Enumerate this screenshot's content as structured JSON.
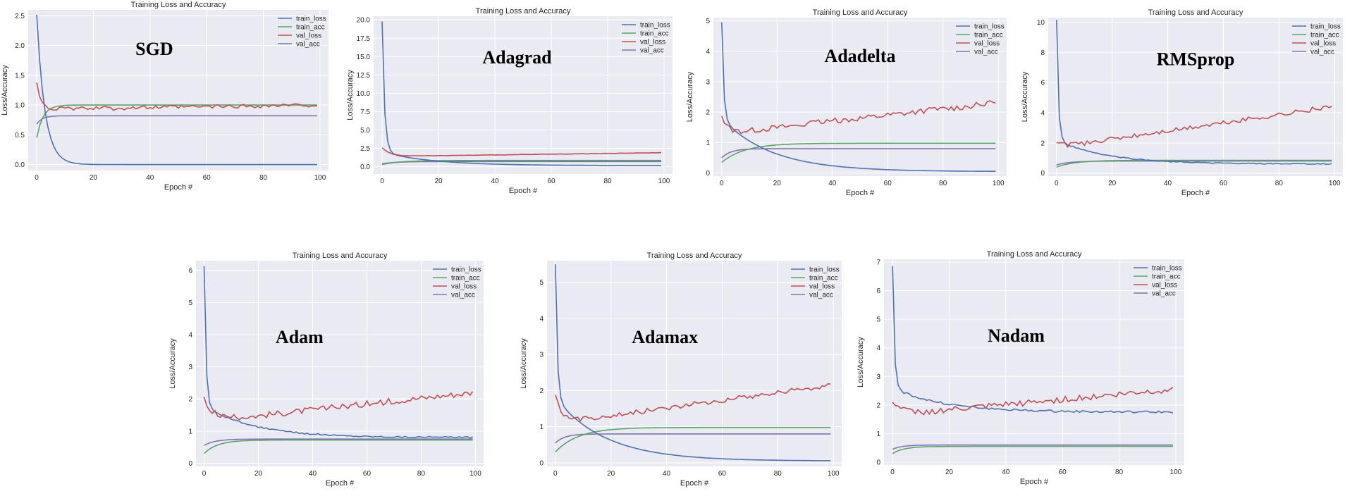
{
  "series_names": [
    "train_loss",
    "train_acc",
    "val_loss",
    "val_acc"
  ],
  "colors": {
    "train_loss": "#4c72b0",
    "train_acc": "#55a868",
    "val_loss": "#c44e52",
    "val_acc": "#8172b2",
    "plot_bg": "#eaeaf2"
  },
  "chart_data": [
    {
      "type": "line",
      "optimizer": "SGD",
      "title": "Training Loss and Accuracy",
      "xlabel": "Epoch #",
      "ylabel": "Loss/Accuracy",
      "xlim": [
        -3,
        103
      ],
      "ylim": [
        -0.1,
        2.6
      ],
      "xticks": [
        0,
        20,
        40,
        60,
        80,
        100
      ],
      "yticks": [
        0.0,
        0.5,
        1.0,
        1.5,
        2.0,
        2.5
      ],
      "legend": "top-right",
      "grid": true,
      "series": [
        {
          "name": "train_loss",
          "shape": "decay",
          "start": 2.52,
          "end": 0.0,
          "rate": 0.35,
          "noise": 0
        },
        {
          "name": "train_acc",
          "shape": "rise",
          "start": 0.45,
          "end": 1.0,
          "rate": 0.45,
          "noise": 0
        },
        {
          "name": "val_loss",
          "shape": "dip-rise",
          "start": 1.35,
          "end": 1.0,
          "rate": 0.6,
          "min": 0.93,
          "noise": 0.03
        },
        {
          "name": "val_acc",
          "shape": "rise",
          "start": 0.68,
          "end": 0.82,
          "rate": 0.5,
          "noise": 0
        }
      ]
    },
    {
      "type": "line",
      "optimizer": "Adagrad",
      "title": "Training Loss and Accuracy",
      "xlabel": "Epoch #",
      "ylabel": "Loss/Accuracy",
      "xlim": [
        -3,
        103
      ],
      "ylim": [
        -1.0,
        20.5
      ],
      "xticks": [
        0,
        20,
        40,
        60,
        80,
        100
      ],
      "yticks": [
        0.0,
        2.5,
        5.0,
        7.5,
        10.0,
        12.5,
        15.0,
        17.5,
        20.0
      ],
      "legend": "top-right",
      "grid": true,
      "series": [
        {
          "name": "train_loss",
          "shape": "decay-slow",
          "start": 19.8,
          "end": 0.15,
          "rate": 1.2,
          "mid": 2.0,
          "noise": 0
        },
        {
          "name": "train_acc",
          "shape": "rise",
          "start": 0.3,
          "end": 0.85,
          "rate": 0.15,
          "noise": 0
        },
        {
          "name": "val_loss",
          "shape": "dip-rise",
          "start": 2.6,
          "end": 1.9,
          "rate": 0.35,
          "min": 1.4,
          "noise": 0.02
        },
        {
          "name": "val_acc",
          "shape": "rise",
          "start": 0.4,
          "end": 0.7,
          "rate": 0.2,
          "noise": 0
        }
      ]
    },
    {
      "type": "line",
      "optimizer": "Adadelta",
      "title": "Training Loss and Accuracy",
      "xlabel": "Epoch #",
      "ylabel": "Loss/Accuracy",
      "xlim": [
        -3,
        103
      ],
      "ylim": [
        -0.1,
        5.1
      ],
      "xticks": [
        0,
        20,
        40,
        60,
        80,
        100
      ],
      "yticks": [
        0,
        1,
        2,
        3,
        4,
        5
      ],
      "legend": "top-right",
      "grid": true,
      "series": [
        {
          "name": "train_loss",
          "shape": "decay-slow",
          "start": 4.95,
          "end": 0.05,
          "rate": 1.5,
          "mid": 1.8,
          "noise": 0
        },
        {
          "name": "train_acc",
          "shape": "rise",
          "start": 0.35,
          "end": 0.98,
          "rate": 0.12,
          "noise": 0
        },
        {
          "name": "val_loss",
          "shape": "dip-rise",
          "start": 1.9,
          "end": 2.3,
          "rate": 0.5,
          "min": 1.3,
          "noise": 0.08
        },
        {
          "name": "val_acc",
          "shape": "rise",
          "start": 0.5,
          "end": 0.8,
          "rate": 0.3,
          "noise": 0
        }
      ]
    },
    {
      "type": "line",
      "optimizer": "RMSprop",
      "title": "Training Loss and Accuracy",
      "xlabel": "Epoch #",
      "ylabel": "Loss/Accuracy",
      "xlim": [
        -3,
        103
      ],
      "ylim": [
        -0.2,
        10.3
      ],
      "xticks": [
        0,
        20,
        40,
        60,
        80,
        100
      ],
      "yticks": [
        0,
        2,
        4,
        6,
        8,
        10
      ],
      "legend": "top-right",
      "grid": true,
      "series": [
        {
          "name": "train_loss",
          "shape": "decay-slow",
          "start": 10.1,
          "end": 0.6,
          "rate": 1.6,
          "mid": 2.2,
          "noise": 0.03
        },
        {
          "name": "train_acc",
          "shape": "rise",
          "start": 0.4,
          "end": 0.85,
          "rate": 0.15,
          "noise": 0
        },
        {
          "name": "val_loss",
          "shape": "dip-rise",
          "start": 2.0,
          "end": 4.4,
          "rate": 0.4,
          "min": 1.7,
          "noise": 0.12
        },
        {
          "name": "val_acc",
          "shape": "rise",
          "start": 0.55,
          "end": 0.8,
          "rate": 0.2,
          "noise": 0
        }
      ]
    },
    {
      "type": "line",
      "optimizer": "Adam",
      "title": "Training Loss and Accuracy",
      "xlabel": "Epoch #",
      "ylabel": "Loss/Accuracy",
      "xlim": [
        -3,
        103
      ],
      "ylim": [
        -0.1,
        6.3
      ],
      "xticks": [
        0,
        20,
        40,
        60,
        80,
        100
      ],
      "yticks": [
        0,
        1,
        2,
        3,
        4,
        5,
        6
      ],
      "legend": "top-right",
      "grid": true,
      "series": [
        {
          "name": "train_loss",
          "shape": "decay-slow",
          "start": 6.15,
          "end": 0.8,
          "rate": 1.5,
          "mid": 1.8,
          "noise": 0.02
        },
        {
          "name": "train_acc",
          "shape": "rise",
          "start": 0.3,
          "end": 0.72,
          "rate": 0.2,
          "noise": 0
        },
        {
          "name": "val_loss",
          "shape": "dip-rise",
          "start": 2.0,
          "end": 2.2,
          "rate": 0.3,
          "min": 1.3,
          "noise": 0.08
        },
        {
          "name": "val_acc",
          "shape": "rise",
          "start": 0.55,
          "end": 0.75,
          "rate": 0.25,
          "noise": 0
        }
      ]
    },
    {
      "type": "line",
      "optimizer": "Adamax",
      "title": "Training Loss and Accuracy",
      "xlabel": "Epoch #",
      "ylabel": "Loss/Accuracy",
      "xlim": [
        -3,
        103
      ],
      "ylim": [
        -0.1,
        5.6
      ],
      "xticks": [
        0,
        20,
        40,
        60,
        80,
        100
      ],
      "yticks": [
        0,
        1,
        2,
        3,
        4,
        5
      ],
      "legend": "top-right",
      "grid": true,
      "series": [
        {
          "name": "train_loss",
          "shape": "decay-slow",
          "start": 5.5,
          "end": 0.05,
          "rate": 1.5,
          "mid": 1.8,
          "noise": 0
        },
        {
          "name": "train_acc",
          "shape": "rise",
          "start": 0.3,
          "end": 0.98,
          "rate": 0.12,
          "noise": 0
        },
        {
          "name": "val_loss",
          "shape": "dip-rise",
          "start": 1.95,
          "end": 2.15,
          "rate": 0.5,
          "min": 1.1,
          "noise": 0.06
        },
        {
          "name": "val_acc",
          "shape": "rise",
          "start": 0.55,
          "end": 0.8,
          "rate": 0.3,
          "noise": 0
        }
      ]
    },
    {
      "type": "line",
      "optimizer": "Nadam",
      "title": "Training Loss and Accuracy",
      "xlabel": "Epoch #",
      "ylabel": "Loss/Accuracy",
      "xlim": [
        -3,
        103
      ],
      "ylim": [
        -0.1,
        7.1
      ],
      "xticks": [
        0,
        20,
        40,
        60,
        80,
        100
      ],
      "yticks": [
        0,
        1,
        2,
        3,
        4,
        5,
        6,
        7
      ],
      "legend": "top-right",
      "grid": true,
      "series": [
        {
          "name": "train_loss",
          "shape": "decay-slow",
          "start": 6.85,
          "end": 1.75,
          "rate": 1.6,
          "mid": 2.6,
          "noise": 0.03
        },
        {
          "name": "train_acc",
          "shape": "rise",
          "start": 0.3,
          "end": 0.55,
          "rate": 0.25,
          "noise": 0
        },
        {
          "name": "val_loss",
          "shape": "dip-rise",
          "start": 2.15,
          "end": 2.55,
          "rate": 0.3,
          "min": 1.65,
          "noise": 0.09
        },
        {
          "name": "val_acc",
          "shape": "rise",
          "start": 0.45,
          "end": 0.6,
          "rate": 0.3,
          "noise": 0
        }
      ]
    }
  ]
}
